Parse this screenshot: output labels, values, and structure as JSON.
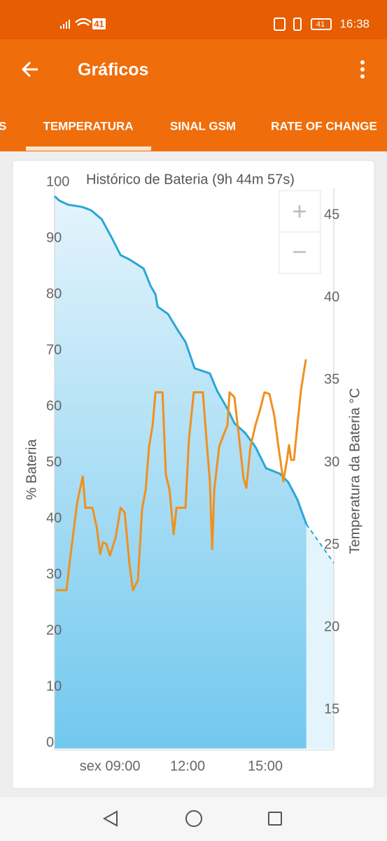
{
  "status_bar": {
    "network": "41",
    "battery": "41",
    "time": "16:38"
  },
  "app_bar": {
    "title": "Gráficos"
  },
  "tabs": [
    "S",
    "TEMPERATURA",
    "SINAL GSM",
    "RATE OF CHANGE"
  ],
  "zoom_controls": [
    "+",
    "−"
  ],
  "chart_data": {
    "type": "line",
    "title": "Histórico de Bateria (9h 44m 57s)",
    "y_label": "% Bateria",
    "y2_label": "Temperatura da Bateria °C",
    "xlim": [
      6.86,
      17.65
    ],
    "xticks": [
      {
        "value": 9,
        "label": "sex 09:00"
      },
      {
        "value": 12,
        "label": "12:00"
      },
      {
        "value": 15,
        "label": "15:00"
      }
    ],
    "ylim": [
      0,
      100
    ],
    "yticks": [
      0,
      10,
      20,
      30,
      40,
      50,
      60,
      70,
      80,
      90,
      100
    ],
    "y2lim": [
      13,
      47
    ],
    "y2ticks": [
      15,
      20,
      25,
      30,
      35,
      40,
      45
    ],
    "series": [
      {
        "color": "#2ba6d6",
        "fill": true,
        "axis": "y",
        "x": [
          6.86,
          7.05,
          7.38,
          7.92,
          8.27,
          8.68,
          9.08,
          9.41,
          9.76,
          10.3,
          10.57,
          10.76,
          10.84,
          11.24,
          11.65,
          11.92,
          12.11,
          12.27,
          12.86,
          13.14,
          13.54,
          13.81,
          14.22,
          14.62,
          15.03,
          15.57,
          15.89,
          16.24,
          16.59
        ],
        "values": [
          98.5,
          97.7,
          97,
          96.6,
          96,
          94.4,
          91,
          88,
          87.2,
          85.6,
          82.5,
          81,
          78.8,
          77.5,
          74.4,
          72.5,
          70,
          67.8,
          66.9,
          63.8,
          60.6,
          58,
          56.3,
          53.8,
          50,
          49,
          47.5,
          44.4,
          40
        ]
      },
      {
        "color": "#2ba6d6",
        "dashed": true,
        "axis": "y",
        "x": [
          16.59,
          17.65
        ],
        "values": [
          40,
          33.1
        ]
      },
      {
        "color": "#f0901e",
        "axis": "y2",
        "x": [
          6.92,
          7.32,
          7.46,
          7.73,
          7.95,
          8.05,
          8.32,
          8.49,
          8.62,
          8.73,
          8.86,
          9.0,
          9.22,
          9.41,
          9.57,
          9.76,
          9.89,
          10.08,
          10.24,
          10.38,
          10.51,
          10.65,
          10.76,
          11.03,
          11.16,
          11.3,
          11.46,
          11.57,
          11.92,
          12.05,
          12.24,
          12.59,
          12.73,
          12.86,
          12.95,
          13.03,
          13.22,
          13.41,
          13.54,
          13.62,
          13.81,
          14.0,
          14.16,
          14.27,
          14.43,
          14.62,
          14.81,
          14.97,
          15.16,
          15.35,
          15.51,
          15.7,
          15.84,
          15.92,
          16.0,
          16.11,
          16.24,
          16.38,
          16.57
        ],
        "values": [
          22.6,
          22.6,
          24.5,
          27.9,
          29.5,
          27.6,
          27.6,
          26.4,
          24.8,
          25.5,
          25.4,
          24.7,
          25.8,
          27.6,
          27.3,
          24.1,
          22.6,
          23.2,
          27.5,
          28.7,
          31.3,
          32.6,
          34.6,
          34.6,
          29.6,
          28.7,
          26,
          27.6,
          27.6,
          31.7,
          34.6,
          34.6,
          31.7,
          29.2,
          25.1,
          28.7,
          31.3,
          32.1,
          32.6,
          34.6,
          34.3,
          31.7,
          29.4,
          28.8,
          31.3,
          32.6,
          33.6,
          34.6,
          34.5,
          33.2,
          31.3,
          29.2,
          30.5,
          31.4,
          30.5,
          30.5,
          32.6,
          34.7,
          36.6
        ]
      }
    ]
  }
}
